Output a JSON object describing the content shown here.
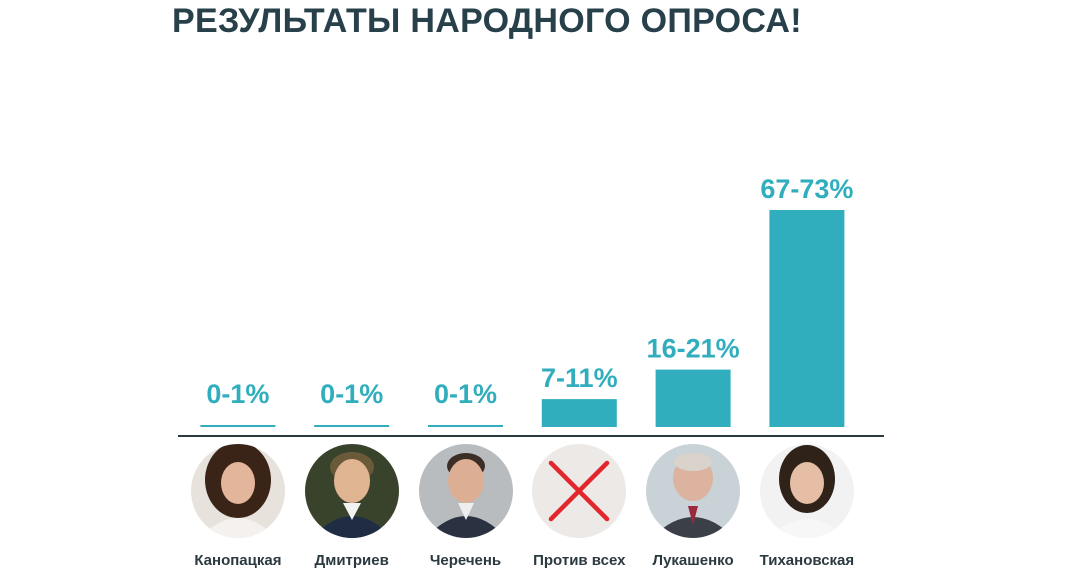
{
  "title": "РЕЗУЛЬТАТЫ НАРОДНОГО ОПРОСА!",
  "colors": {
    "bar": "#31aebd",
    "label": "#31aebd",
    "baseline": "#2b3a40",
    "title": "#27404a",
    "name": "#2b3a40",
    "cross": "#e3262b"
  },
  "chart_data": {
    "type": "bar",
    "categories": [
      "Канопацкая",
      "Дмитриев",
      "Черечень",
      "Против всех",
      "Лукашенко",
      "Тихановская"
    ],
    "value_ranges": [
      [
        0,
        1
      ],
      [
        0,
        1
      ],
      [
        0,
        1
      ],
      [
        7,
        11
      ],
      [
        16,
        21
      ],
      [
        67,
        73
      ]
    ],
    "labels": [
      "0-1%",
      "0-1%",
      "0-1%",
      "7-11%",
      "16-21%",
      "67-73%"
    ],
    "unit": "%",
    "icons": [
      "portrait-photo",
      "portrait-photo",
      "portrait-photo",
      "cross-icon",
      "portrait-photo",
      "portrait-photo"
    ],
    "grid": false,
    "legend": "none"
  }
}
